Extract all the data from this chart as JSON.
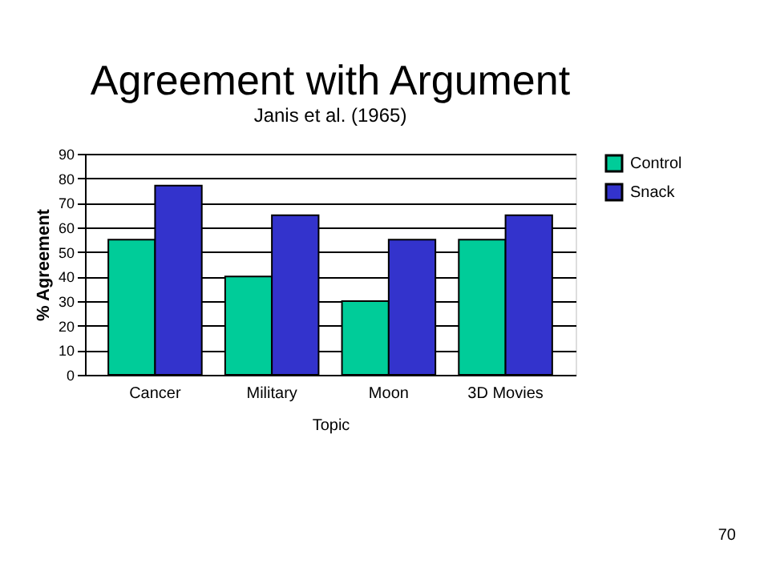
{
  "chart_data": {
    "type": "bar",
    "title": "Agreement with Argument",
    "subtitle": "Janis et al. (1965)",
    "xlabel": "Topic",
    "ylabel": "% Agreement",
    "categories": [
      "Cancer",
      "Military",
      "Moon",
      "3D Movies"
    ],
    "series": [
      {
        "name": "Control",
        "color": "#00cc99",
        "values": [
          55,
          40,
          30,
          55
        ]
      },
      {
        "name": "Snack",
        "color": "#3333cc",
        "values": [
          77,
          65,
          55,
          65
        ]
      }
    ],
    "ylim": [
      0,
      90
    ],
    "yticks": [
      0,
      10,
      20,
      30,
      40,
      50,
      60,
      70,
      80,
      90
    ],
    "grid": "y",
    "legend": "right",
    "annotations": [
      "70"
    ]
  }
}
